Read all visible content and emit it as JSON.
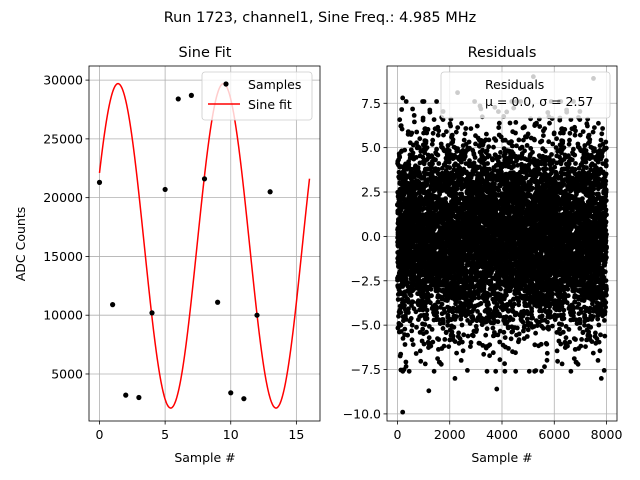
{
  "suptitle": "Run 1723, channel1, Sine Freq.: 4.985 MHz",
  "chart_data": [
    {
      "type": "line+scatter",
      "title": "Sine Fit",
      "xlabel": "Sample #",
      "ylabel": "ADC Counts",
      "xlim": [
        -0.8,
        16.8
      ],
      "ylim": [
        1000,
        31200
      ],
      "xticks": [
        0,
        5,
        10,
        15
      ],
      "yticks": [
        5000,
        10000,
        15000,
        20000,
        25000,
        30000
      ],
      "grid": true,
      "legend_position": "top-right",
      "series": [
        {
          "name": "Samples",
          "style": "points",
          "color": "#000000",
          "x": [
            0,
            1,
            2,
            3,
            4,
            5,
            6,
            7,
            8,
            9,
            10,
            11,
            12,
            13
          ],
          "y": [
            21300,
            10900,
            3200,
            3000,
            10200,
            20700,
            28400,
            28700,
            21600,
            11100,
            3400,
            2900,
            10000,
            20500
          ]
        },
        {
          "name": "Sine fit",
          "style": "line",
          "color": "#ff0000",
          "model": {
            "offset": 15900,
            "amplitude": 13800,
            "period": 8.025,
            "phase_deg": 26.7
          },
          "x_range": [
            0,
            16
          ]
        }
      ]
    },
    {
      "type": "scatter",
      "title": "Residuals",
      "xlabel": "Sample #",
      "ylabel": "",
      "xlim": [
        -400,
        8400
      ],
      "ylim": [
        -10.4,
        9.6
      ],
      "xticks": [
        0,
        2000,
        4000,
        6000,
        8000
      ],
      "yticks": [
        -10.0,
        -7.5,
        -5.0,
        -2.5,
        0.0,
        2.5,
        5.0,
        7.5
      ],
      "grid": true,
      "legend_position": "top-right",
      "series": [
        {
          "name": "Residuals",
          "label_stats": "μ = 0.0, σ = 2.57",
          "color": "#000000",
          "n_points": 8000,
          "x_range": [
            0,
            8000
          ],
          "mean": 0.0,
          "sigma": 2.57,
          "outliers": [
            {
              "x": 200,
              "y": -9.9
            },
            {
              "x": 1200,
              "y": -8.7
            },
            {
              "x": 3800,
              "y": -8.6
            },
            {
              "x": 2200,
              "y": -8.0
            },
            {
              "x": 7800,
              "y": -8.0
            },
            {
              "x": 5200,
              "y": 9.0
            },
            {
              "x": 7500,
              "y": 8.9
            },
            {
              "x": 200,
              "y": 7.8
            },
            {
              "x": 2300,
              "y": 8.1
            }
          ]
        }
      ]
    }
  ]
}
